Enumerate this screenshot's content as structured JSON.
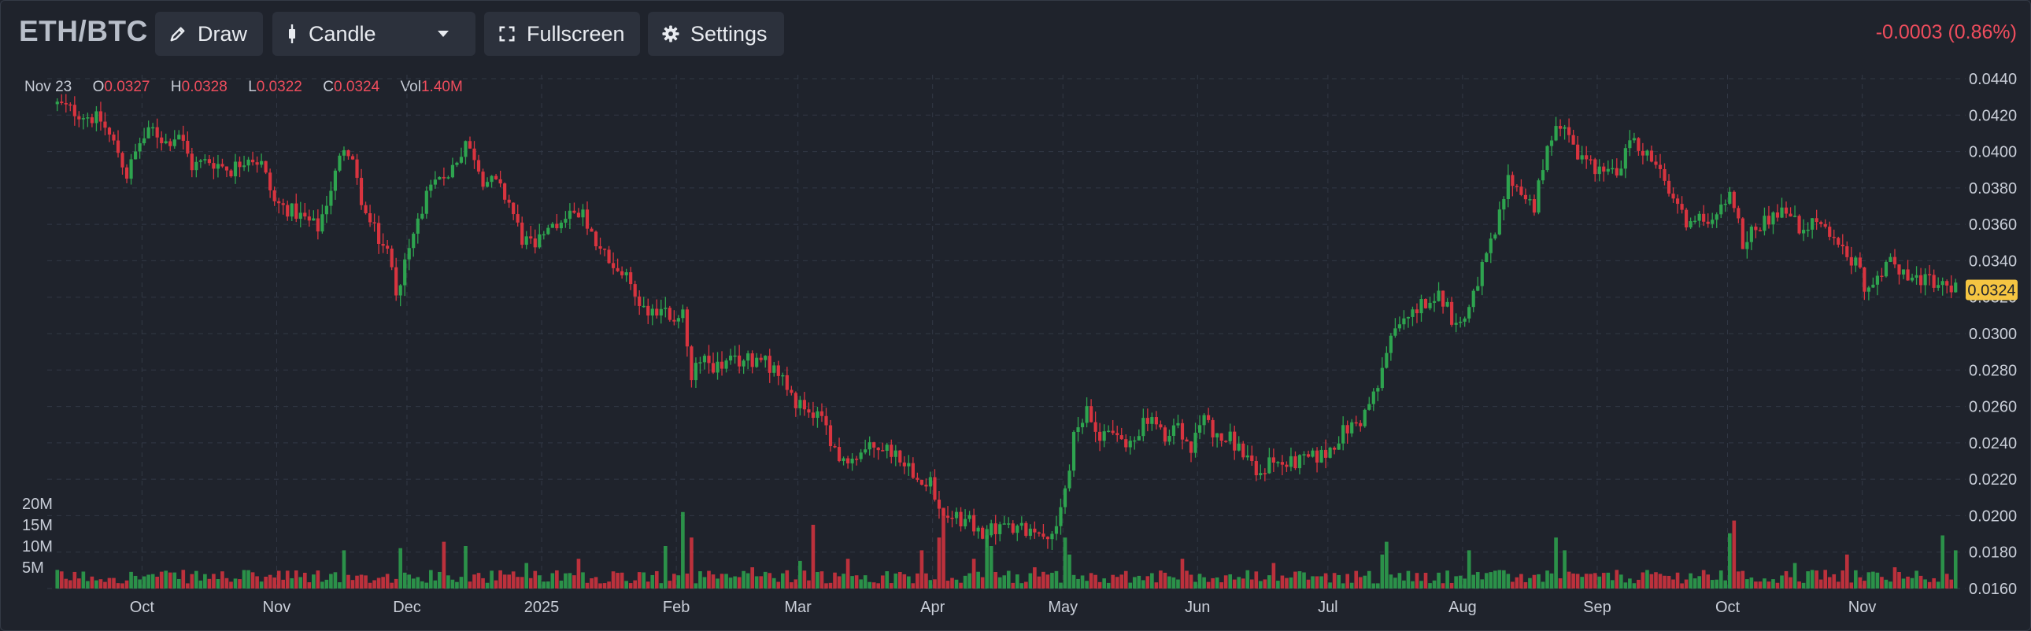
{
  "toolbar": {
    "symbol": "ETH/BTC",
    "draw_label": "Draw",
    "chart_type_label": "Candle",
    "fullscreen_label": "Fullscreen",
    "settings_label": "Settings",
    "change": "-0.0003 (0.86%)"
  },
  "legend": {
    "date": "Nov 23",
    "open_label": "O",
    "open": "0.0327",
    "high_label": "H",
    "high": "0.0328",
    "low_label": "L",
    "low": "0.0322",
    "close_label": "C",
    "close": "0.0324",
    "vol_label": "Vol",
    "vol": "1.40M"
  },
  "colors": {
    "up": "#2ea44f",
    "down": "#d8343f",
    "background": "#1f232c",
    "last_price_tag": "#f5c542",
    "change": "#ef4d5d"
  },
  "chart_data": {
    "type": "candlestick",
    "price_ticks": [
      "0.0440",
      "0.0420",
      "0.0400",
      "0.0380",
      "0.0360",
      "0.0340",
      "0.0320",
      "0.0300",
      "0.0280",
      "0.0260",
      "0.0240",
      "0.0220",
      "0.0200",
      "0.0180",
      "0.0160"
    ],
    "price_range": [
      0.016,
      0.044
    ],
    "last_price": "0.0324",
    "volume_ticks": [
      "20M",
      "15M",
      "10M",
      "5M"
    ],
    "volume_range": [
      0,
      20000000
    ],
    "x_labels": [
      "Oct",
      "Nov",
      "Dec",
      "2025",
      "Feb",
      "Mar",
      "Apr",
      "May",
      "Jun",
      "Jul",
      "Aug",
      "Sep",
      "Oct",
      "Nov"
    ],
    "x_label_days": [
      20,
      51,
      81,
      112,
      143,
      171,
      202,
      232,
      263,
      293,
      324,
      355,
      385,
      416
    ],
    "days": 438,
    "grid": true,
    "close_path": [
      [
        0,
        0.0426
      ],
      [
        4,
        0.0422
      ],
      [
        10,
        0.0417
      ],
      [
        14,
        0.04
      ],
      [
        16,
        0.0387
      ],
      [
        19,
        0.0405
      ],
      [
        22,
        0.0412
      ],
      [
        25,
        0.0405
      ],
      [
        28,
        0.041
      ],
      [
        31,
        0.0392
      ],
      [
        35,
        0.0395
      ],
      [
        40,
        0.039
      ],
      [
        44,
        0.0398
      ],
      [
        47,
        0.0393
      ],
      [
        50,
        0.0372
      ],
      [
        55,
        0.0366
      ],
      [
        60,
        0.0358
      ],
      [
        63,
        0.038
      ],
      [
        66,
        0.0403
      ],
      [
        68,
        0.0392
      ],
      [
        71,
        0.0365
      ],
      [
        74,
        0.0352
      ],
      [
        76,
        0.0345
      ],
      [
        78,
        0.0324
      ],
      [
        81,
        0.0345
      ],
      [
        84,
        0.037
      ],
      [
        87,
        0.0382
      ],
      [
        90,
        0.0388
      ],
      [
        92,
        0.0396
      ],
      [
        94,
        0.0402
      ],
      [
        96,
        0.0398
      ],
      [
        98,
        0.0385
      ],
      [
        101,
        0.0382
      ],
      [
        104,
        0.0372
      ],
      [
        107,
        0.0352
      ],
      [
        110,
        0.0348
      ],
      [
        113,
        0.0355
      ],
      [
        116,
        0.0362
      ],
      [
        119,
        0.0368
      ],
      [
        121,
        0.0364
      ],
      [
        123,
        0.0352
      ],
      [
        127,
        0.034
      ],
      [
        131,
        0.033
      ],
      [
        135,
        0.0314
      ],
      [
        139,
        0.0312
      ],
      [
        142,
        0.0308
      ],
      [
        144,
        0.0314
      ],
      [
        146,
        0.0276
      ],
      [
        148,
        0.0286
      ],
      [
        152,
        0.0282
      ],
      [
        157,
        0.0285
      ],
      [
        162,
        0.0286
      ],
      [
        166,
        0.0278
      ],
      [
        169,
        0.0264
      ],
      [
        174,
        0.0258
      ],
      [
        177,
        0.0248
      ],
      [
        180,
        0.0232
      ],
      [
        184,
        0.0234
      ],
      [
        189,
        0.0238
      ],
      [
        193,
        0.0235
      ],
      [
        197,
        0.0225
      ],
      [
        201,
        0.0218
      ],
      [
        204,
        0.0202
      ],
      [
        207,
        0.0198
      ],
      [
        210,
        0.0196
      ],
      [
        213,
        0.019
      ],
      [
        217,
        0.0194
      ],
      [
        221,
        0.0192
      ],
      [
        226,
        0.0193
      ],
      [
        230,
        0.019
      ],
      [
        232,
        0.0215
      ],
      [
        234,
        0.0242
      ],
      [
        237,
        0.0256
      ],
      [
        240,
        0.0245
      ],
      [
        243,
        0.0248
      ],
      [
        246,
        0.0236
      ],
      [
        249,
        0.0248
      ],
      [
        252,
        0.0254
      ],
      [
        255,
        0.024
      ],
      [
        258,
        0.025
      ],
      [
        261,
        0.0236
      ],
      [
        264,
        0.0256
      ],
      [
        267,
        0.0242
      ],
      [
        270,
        0.0242
      ],
      [
        274,
        0.0232
      ],
      [
        276,
        0.022
      ],
      [
        279,
        0.023
      ],
      [
        283,
        0.0228
      ],
      [
        287,
        0.023
      ],
      [
        292,
        0.0234
      ],
      [
        296,
        0.0246
      ],
      [
        300,
        0.0252
      ],
      [
        304,
        0.027
      ],
      [
        306,
        0.029
      ],
      [
        309,
        0.0305
      ],
      [
        313,
        0.0314
      ],
      [
        317,
        0.0322
      ],
      [
        320,
        0.0316
      ],
      [
        322,
        0.0302
      ],
      [
        325,
        0.0318
      ],
      [
        328,
        0.0335
      ],
      [
        331,
        0.0355
      ],
      [
        334,
        0.0385
      ],
      [
        337,
        0.0378
      ],
      [
        340,
        0.037
      ],
      [
        343,
        0.04
      ],
      [
        345,
        0.0418
      ],
      [
        348,
        0.0412
      ],
      [
        350,
        0.0398
      ],
      [
        354,
        0.0392
      ],
      [
        357,
        0.0388
      ],
      [
        360,
        0.039
      ],
      [
        362,
        0.0408
      ],
      [
        364,
        0.0402
      ],
      [
        367,
        0.0396
      ],
      [
        370,
        0.0382
      ],
      [
        373,
        0.0368
      ],
      [
        376,
        0.036
      ],
      [
        379,
        0.0363
      ],
      [
        382,
        0.0368
      ],
      [
        385,
        0.0375
      ],
      [
        386,
        0.0372
      ],
      [
        388,
        0.0348
      ],
      [
        390,
        0.0356
      ],
      [
        392,
        0.036
      ],
      [
        395,
        0.0365
      ],
      [
        398,
        0.0368
      ],
      [
        401,
        0.0358
      ],
      [
        405,
        0.0362
      ],
      [
        408,
        0.0352
      ],
      [
        411,
        0.0345
      ],
      [
        414,
        0.034
      ],
      [
        416,
        0.0325
      ],
      [
        419,
        0.0333
      ],
      [
        422,
        0.0338
      ],
      [
        425,
        0.0335
      ],
      [
        428,
        0.033
      ],
      [
        431,
        0.0328
      ],
      [
        434,
        0.0326
      ],
      [
        437,
        0.0324
      ]
    ],
    "volume_spikes": [
      [
        66,
        9000000
      ],
      [
        79,
        9500000
      ],
      [
        89,
        11000000
      ],
      [
        94,
        10000000
      ],
      [
        108,
        6000000
      ],
      [
        120,
        7000000
      ],
      [
        140,
        10000000
      ],
      [
        144,
        18000000
      ],
      [
        146,
        12000000
      ],
      [
        160,
        5000000
      ],
      [
        171,
        6500000
      ],
      [
        174,
        15000000
      ],
      [
        182,
        7000000
      ],
      [
        199,
        9000000
      ],
      [
        203,
        12000000
      ],
      [
        204,
        19000000
      ],
      [
        211,
        7000000
      ],
      [
        214,
        14000000
      ],
      [
        215,
        10000000
      ],
      [
        225,
        5000000
      ],
      [
        232,
        12000000
      ],
      [
        233,
        8000000
      ],
      [
        259,
        7000000
      ],
      [
        280,
        6000000
      ],
      [
        305,
        8000000
      ],
      [
        306,
        11000000
      ],
      [
        325,
        9000000
      ],
      [
        345,
        12000000
      ],
      [
        347,
        9000000
      ],
      [
        385,
        13000000
      ],
      [
        386,
        16000000
      ],
      [
        400,
        6000000
      ],
      [
        412,
        8000000
      ],
      [
        423,
        5000000
      ],
      [
        434,
        12500000
      ],
      [
        437,
        9000000
      ]
    ]
  }
}
